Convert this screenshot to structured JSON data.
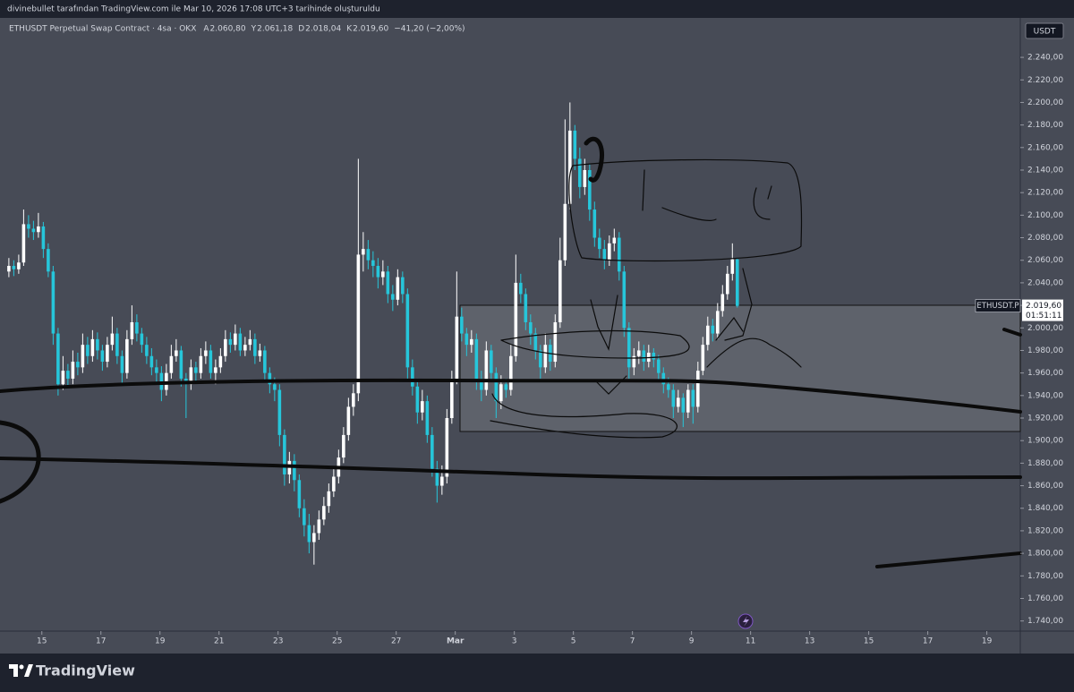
{
  "chart_data": {
    "type": "candlestick",
    "attribution": "divinebullet tarafından TradingView.com ile Mar 10, 2026 17:08 UTC+3 tarihinde oluşturuldu",
    "title": "ETHUSDT Perpetual Swap Contract · 4sa · OKX",
    "legend_fields": [
      {
        "key": "A",
        "value": 2060.8,
        "label": "2.060,80"
      },
      {
        "key": "Y",
        "value": 2061.18,
        "label": "2.061,18"
      },
      {
        "key": "D",
        "value": 2018.04,
        "label": "2.018,04"
      },
      {
        "key": "K",
        "value": 2019.6,
        "label": "2.019,60"
      }
    ],
    "change": {
      "value": -41.2,
      "label": "−41,20 (−2,00%)"
    },
    "currency": "USDT",
    "last_price": {
      "value": 2019.6,
      "label": "2.019,60"
    },
    "symbol_tag": "ETHUSDT.P",
    "countdown": "01:51:11",
    "brand": "TradingView",
    "up_color": "#ffffff",
    "down_color": "#26c6da",
    "grid": false,
    "xlim": [
      -1.8,
      205.5
    ],
    "ylim": [
      1731,
      2275
    ],
    "xticks": [
      {
        "value": 6.7,
        "label": "15"
      },
      {
        "value": 18.7,
        "label": "17"
      },
      {
        "value": 30.7,
        "label": "19"
      },
      {
        "value": 42.7,
        "label": "21"
      },
      {
        "value": 54.7,
        "label": "23"
      },
      {
        "value": 66.7,
        "label": "25"
      },
      {
        "value": 78.7,
        "label": "27"
      },
      {
        "value": 90.7,
        "label": "Mar"
      },
      {
        "value": 102.7,
        "label": "3"
      },
      {
        "value": 114.7,
        "label": "5"
      },
      {
        "value": 126.7,
        "label": "7"
      },
      {
        "value": 138.7,
        "label": "9"
      },
      {
        "value": 150.7,
        "label": "11"
      },
      {
        "value": 162.7,
        "label": "13"
      },
      {
        "value": 174.7,
        "label": "15"
      },
      {
        "value": 186.7,
        "label": "17"
      },
      {
        "value": 198.7,
        "label": "19"
      }
    ],
    "yticks": [
      {
        "value": 1740,
        "label": "1.740,00"
      },
      {
        "value": 1760,
        "label": "1.760,00"
      },
      {
        "value": 1780,
        "label": "1.780,00"
      },
      {
        "value": 1800,
        "label": "1.800,00"
      },
      {
        "value": 1820,
        "label": "1.820,00"
      },
      {
        "value": 1840,
        "label": "1.840,00"
      },
      {
        "value": 1860,
        "label": "1.860,00"
      },
      {
        "value": 1880,
        "label": "1.880,00"
      },
      {
        "value": 1900,
        "label": "1.900,00"
      },
      {
        "value": 1920,
        "label": "1.920,00"
      },
      {
        "value": 1940,
        "label": "1.940,00"
      },
      {
        "value": 1960,
        "label": "1.960,00"
      },
      {
        "value": 1980,
        "label": "1.980,00"
      },
      {
        "value": 2000,
        "label": "2.000,00"
      },
      {
        "value": 2020,
        "label": "2.020,00"
      },
      {
        "value": 2040,
        "label": "2.040,00"
      },
      {
        "value": 2060,
        "label": "2.060,00"
      },
      {
        "value": 2080,
        "label": "2.080,00"
      },
      {
        "value": 2100,
        "label": "2.100,00"
      },
      {
        "value": 2120,
        "label": "2.120,00"
      },
      {
        "value": 2140,
        "label": "2.140,00"
      },
      {
        "value": 2160,
        "label": "2.160,00"
      },
      {
        "value": 2180,
        "label": "2.180,00"
      },
      {
        "value": 2200,
        "label": "2.200,00"
      },
      {
        "value": 2220,
        "label": "2.220,00"
      },
      {
        "value": 2240,
        "label": "2.240,00"
      }
    ],
    "ohlc": [
      [
        2050,
        2062,
        2045,
        2055
      ],
      [
        2055,
        2060,
        2046,
        2052
      ],
      [
        2052,
        2065,
        2048,
        2058
      ],
      [
        2058,
        2105,
        2055,
        2092
      ],
      [
        2092,
        2100,
        2080,
        2088
      ],
      [
        2088,
        2095,
        2078,
        2085
      ],
      [
        2085,
        2102,
        2080,
        2090
      ],
      [
        2090,
        2094,
        2062,
        2070
      ],
      [
        2070,
        2075,
        2045,
        2050
      ],
      [
        2050,
        2055,
        1985,
        1995
      ],
      [
        1995,
        2000,
        1940,
        1950
      ],
      [
        1950,
        1975,
        1945,
        1962
      ],
      [
        1962,
        1968,
        1948,
        1955
      ],
      [
        1955,
        1980,
        1950,
        1970
      ],
      [
        1970,
        1978,
        1958,
        1965
      ],
      [
        1965,
        1995,
        1960,
        1985
      ],
      [
        1985,
        1992,
        1968,
        1975
      ],
      [
        1975,
        1998,
        1970,
        1990
      ],
      [
        1990,
        1996,
        1972,
        1980
      ],
      [
        1980,
        1985,
        1962,
        1970
      ],
      [
        1970,
        1992,
        1965,
        1985
      ],
      [
        1985,
        2010,
        1980,
        1995
      ],
      [
        1995,
        2000,
        1968,
        1975
      ],
      [
        1975,
        1980,
        1950,
        1960
      ],
      [
        1960,
        1998,
        1955,
        1990
      ],
      [
        1990,
        2020,
        1985,
        2005
      ],
      [
        2005,
        2012,
        1988,
        1995
      ],
      [
        1995,
        2000,
        1978,
        1985
      ],
      [
        1985,
        1992,
        1968,
        1975
      ],
      [
        1975,
        1982,
        1958,
        1965
      ],
      [
        1965,
        1972,
        1950,
        1960
      ],
      [
        1960,
        1966,
        1935,
        1945
      ],
      [
        1945,
        1968,
        1940,
        1960
      ],
      [
        1960,
        1985,
        1955,
        1975
      ],
      [
        1975,
        1990,
        1970,
        1980
      ],
      [
        1980,
        1984,
        1948,
        1955
      ],
      [
        1955,
        1960,
        1920,
        1950
      ],
      [
        1950,
        1972,
        1945,
        1965
      ],
      [
        1965,
        1970,
        1952,
        1960
      ],
      [
        1960,
        1982,
        1955,
        1975
      ],
      [
        1975,
        1988,
        1968,
        1980
      ],
      [
        1980,
        1985,
        1955,
        1960
      ],
      [
        1960,
        1972,
        1950,
        1965
      ],
      [
        1965,
        1982,
        1960,
        1975
      ],
      [
        1975,
        1998,
        1970,
        1990
      ],
      [
        1990,
        1996,
        1978,
        1985
      ],
      [
        1985,
        2003,
        1980,
        1995
      ],
      [
        1995,
        2000,
        1975,
        1980
      ],
      [
        1980,
        1992,
        1975,
        1985
      ],
      [
        1985,
        1998,
        1980,
        1990
      ],
      [
        1990,
        1995,
        1968,
        1975
      ],
      [
        1975,
        1986,
        1970,
        1980
      ],
      [
        1980,
        1984,
        1952,
        1960
      ],
      [
        1960,
        1965,
        1942,
        1950
      ],
      [
        1950,
        1956,
        1935,
        1945
      ],
      [
        1945,
        1950,
        1895,
        1905
      ],
      [
        1905,
        1910,
        1860,
        1870
      ],
      [
        1870,
        1890,
        1862,
        1882
      ],
      [
        1882,
        1888,
        1855,
        1865
      ],
      [
        1865,
        1870,
        1832,
        1840
      ],
      [
        1840,
        1848,
        1815,
        1825
      ],
      [
        1825,
        1835,
        1800,
        1810
      ],
      [
        1810,
        1825,
        1790,
        1818
      ],
      [
        1818,
        1838,
        1812,
        1830
      ],
      [
        1830,
        1850,
        1825,
        1842
      ],
      [
        1842,
        1862,
        1836,
        1855
      ],
      [
        1855,
        1875,
        1850,
        1868
      ],
      [
        1868,
        1892,
        1862,
        1885
      ],
      [
        1885,
        1912,
        1880,
        1905
      ],
      [
        1905,
        1938,
        1900,
        1930
      ],
      [
        1930,
        1950,
        1922,
        1942
      ],
      [
        1942,
        2150,
        1935,
        2065
      ],
      [
        2065,
        2085,
        2050,
        2070
      ],
      [
        2070,
        2078,
        2052,
        2060
      ],
      [
        2060,
        2068,
        2045,
        2055
      ],
      [
        2055,
        2062,
        2035,
        2045
      ],
      [
        2045,
        2060,
        2038,
        2050
      ],
      [
        2050,
        2055,
        2022,
        2030
      ],
      [
        2030,
        2038,
        2015,
        2025
      ],
      [
        2025,
        2052,
        2020,
        2045
      ],
      [
        2045,
        2050,
        2022,
        2030
      ],
      [
        2030,
        2035,
        1955,
        1965
      ],
      [
        1965,
        1972,
        1940,
        1948
      ],
      [
        1948,
        1955,
        1915,
        1925
      ],
      [
        1925,
        1945,
        1918,
        1935
      ],
      [
        1935,
        1940,
        1898,
        1905
      ],
      [
        1905,
        1912,
        1868,
        1875
      ],
      [
        1875,
        1882,
        1845,
        1860
      ],
      [
        1860,
        1878,
        1852,
        1868
      ],
      [
        1868,
        1928,
        1862,
        1920
      ],
      [
        1920,
        1962,
        1915,
        1955
      ],
      [
        1955,
        2050,
        1950,
        2010
      ],
      [
        2010,
        2018,
        1988,
        1995
      ],
      [
        1995,
        2000,
        1975,
        1985
      ],
      [
        1985,
        1998,
        1978,
        1990
      ],
      [
        1990,
        1995,
        1945,
        1955
      ],
      [
        1955,
        1962,
        1935,
        1945
      ],
      [
        1945,
        1988,
        1940,
        1980
      ],
      [
        1980,
        1985,
        1952,
        1960
      ],
      [
        1960,
        1965,
        1920,
        1935
      ],
      [
        1935,
        1958,
        1928,
        1950
      ],
      [
        1950,
        1955,
        1938,
        1945
      ],
      [
        1945,
        1985,
        1940,
        1975
      ],
      [
        1975,
        2065,
        1970,
        2040
      ],
      [
        2040,
        2048,
        2022,
        2030
      ],
      [
        2030,
        2035,
        1998,
        2005
      ],
      [
        2005,
        2012,
        1985,
        1995
      ],
      [
        1995,
        2000,
        1972,
        1980
      ],
      [
        1980,
        1985,
        1955,
        1965
      ],
      [
        1965,
        1995,
        1960,
        1985
      ],
      [
        1985,
        1990,
        1962,
        1970
      ],
      [
        1970,
        2012,
        1965,
        2005
      ],
      [
        2005,
        2080,
        2000,
        2060
      ],
      [
        2060,
        2185,
        2055,
        2110
      ],
      [
        2110,
        2200,
        2105,
        2175
      ],
      [
        2175,
        2180,
        2140,
        2150
      ],
      [
        2150,
        2160,
        2115,
        2125
      ],
      [
        2125,
        2150,
        2118,
        2140
      ],
      [
        2140,
        2145,
        2095,
        2105
      ],
      [
        2105,
        2112,
        2072,
        2080
      ],
      [
        2080,
        2088,
        2062,
        2070
      ],
      [
        2070,
        2078,
        2052,
        2060
      ],
      [
        2060,
        2082,
        2055,
        2075
      ],
      [
        2075,
        2088,
        2068,
        2080
      ],
      [
        2080,
        2085,
        2042,
        2050
      ],
      [
        2050,
        2055,
        1992,
        2000
      ],
      [
        2000,
        2005,
        1955,
        1965
      ],
      [
        1965,
        1982,
        1958,
        1975
      ],
      [
        1975,
        1988,
        1968,
        1980
      ],
      [
        1980,
        1985,
        1962,
        1970
      ],
      [
        1970,
        1985,
        1965,
        1978
      ],
      [
        1978,
        1982,
        1965,
        1972
      ],
      [
        1972,
        1976,
        1952,
        1960
      ],
      [
        1960,
        1965,
        1942,
        1950
      ],
      [
        1950,
        1956,
        1938,
        1945
      ],
      [
        1945,
        1950,
        1920,
        1930
      ],
      [
        1930,
        1945,
        1925,
        1938
      ],
      [
        1938,
        1942,
        1912,
        1925
      ],
      [
        1925,
        1950,
        1920,
        1945
      ],
      [
        1945,
        1950,
        1915,
        1930
      ],
      [
        1930,
        1970,
        1925,
        1962
      ],
      [
        1962,
        1992,
        1958,
        1985
      ],
      [
        1985,
        2010,
        1980,
        2002
      ],
      [
        2002,
        2008,
        1988,
        1995
      ],
      [
        1995,
        2022,
        1990,
        2015
      ],
      [
        2015,
        2038,
        2010,
        2030
      ],
      [
        2030,
        2055,
        2025,
        2048
      ],
      [
        2048,
        2075,
        2042,
        2060.8
      ],
      [
        2060.8,
        2061.18,
        2018.04,
        2019.6
      ]
    ]
  }
}
